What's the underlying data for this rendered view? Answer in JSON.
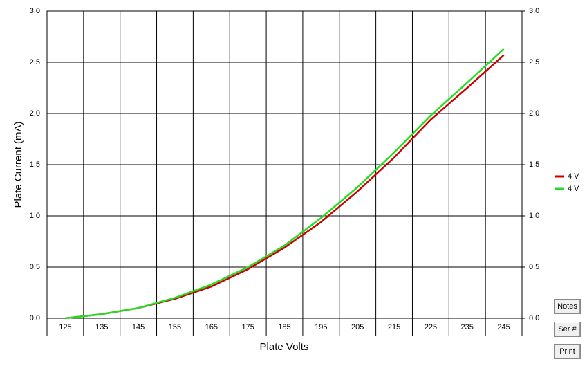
{
  "chart_data": {
    "type": "line",
    "x_label": "Plate Volts",
    "y_label": "Plate Current (mA)",
    "xlim": [
      120,
      250
    ],
    "xticks": [
      125,
      135,
      145,
      155,
      165,
      175,
      185,
      195,
      205,
      215,
      225,
      235,
      245
    ],
    "ylim": [
      0,
      3
    ],
    "yticks": [
      {
        "value": 0,
        "label": "0.0"
      },
      {
        "value": 0.5,
        "label": "0.5"
      },
      {
        "value": 1,
        "label": "1.0"
      },
      {
        "value": 1.5,
        "label": "1.5"
      },
      {
        "value": 2,
        "label": "2.0"
      },
      {
        "value": 2.5,
        "label": "2.5"
      },
      {
        "value": 3,
        "label": "3.0"
      }
    ],
    "y2lim": [
      0,
      3
    ],
    "y2ticks": [
      {
        "value": 0,
        "label": "0.0"
      },
      {
        "value": 0.5,
        "label": "0.5"
      },
      {
        "value": 1,
        "label": "1.0"
      },
      {
        "value": 1.5,
        "label": "1.5"
      },
      {
        "value": 2,
        "label": "2.0"
      },
      {
        "value": 2.5,
        "label": "2.5"
      },
      {
        "value": 3,
        "label": "3.0"
      }
    ],
    "grid": true,
    "x": [
      125,
      135,
      145,
      155,
      165,
      175,
      185,
      195,
      205,
      215,
      225,
      235,
      245
    ],
    "series": [
      {
        "name": "4 V",
        "color": "#cc0000",
        "values": [
          0.0,
          0.04,
          0.1,
          0.19,
          0.31,
          0.48,
          0.69,
          0.94,
          1.24,
          1.57,
          1.94,
          2.25,
          2.57
        ]
      },
      {
        "name": "4 V",
        "color": "#22dd22",
        "values": [
          0.0,
          0.04,
          0.1,
          0.2,
          0.33,
          0.5,
          0.71,
          0.98,
          1.28,
          1.62,
          1.98,
          2.3,
          2.63
        ]
      }
    ]
  },
  "buttons": [
    "Notes",
    "Ser #",
    "Print"
  ]
}
